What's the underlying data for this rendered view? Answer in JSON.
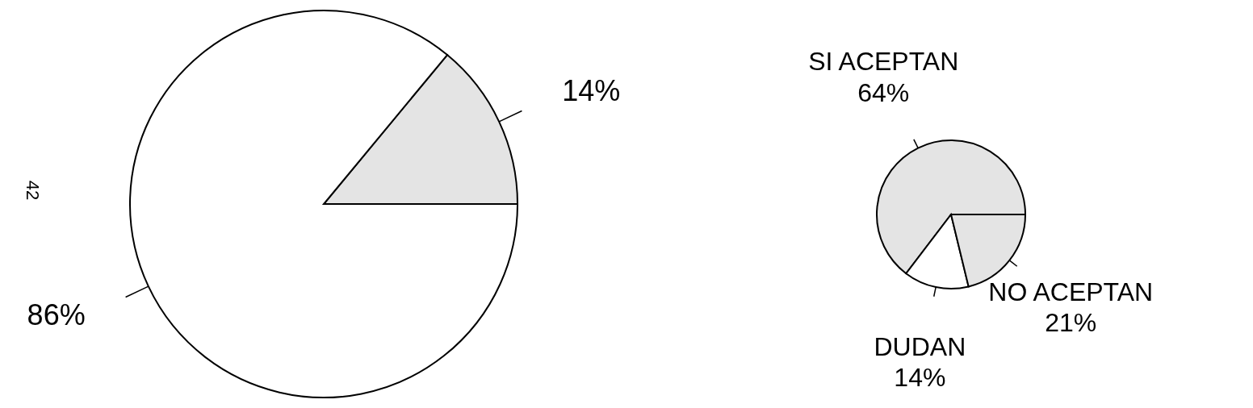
{
  "chart_data": [
    {
      "type": "pie",
      "categories": [
        null,
        null
      ],
      "values": [
        14,
        86
      ],
      "value_labels": [
        "14%",
        "86%"
      ],
      "colors": [
        "#e4e4e4",
        "#ffffff"
      ],
      "annotations": [
        "42"
      ]
    },
    {
      "type": "pie",
      "categories": [
        "SI ACEPTAN",
        "DUDAN",
        "NO ACEPTAN"
      ],
      "values": [
        64,
        14,
        21
      ],
      "value_labels": [
        "64%",
        "14%",
        "21%"
      ],
      "colors": [
        "#e4e4e4",
        "#ffffff",
        "#e4e4e4"
      ]
    }
  ]
}
